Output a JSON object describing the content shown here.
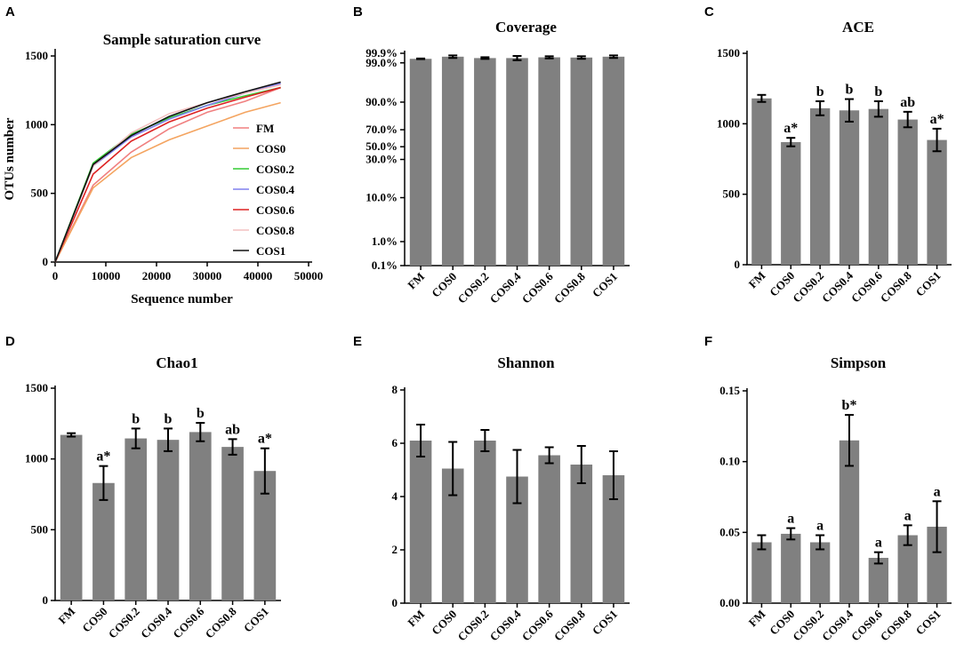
{
  "chart_data": [
    {
      "panel": "A",
      "type": "line",
      "title": "Sample saturation curve",
      "xlabel": "Sequence number",
      "ylabel": "OTUs number",
      "xlim": [
        0,
        50000
      ],
      "ylim": [
        0,
        1500
      ],
      "xticks": [
        0,
        10000,
        20000,
        30000,
        40000,
        50000
      ],
      "yticks": [
        0,
        500,
        1000,
        1500
      ],
      "legend_position": "right",
      "series": [
        {
          "name": "FM",
          "color": "#f08080",
          "x": [
            0,
            7500,
            15000,
            22500,
            30000,
            37500,
            44500
          ],
          "y": [
            0,
            560,
            800,
            970,
            1090,
            1170,
            1270
          ]
        },
        {
          "name": "COS0",
          "color": "#f4a460",
          "x": [
            0,
            7500,
            15000,
            22500,
            30000,
            37500,
            44500
          ],
          "y": [
            0,
            540,
            760,
            890,
            990,
            1090,
            1160
          ]
        },
        {
          "name": "COS0.2",
          "color": "#33cc33",
          "x": [
            0,
            7500,
            15000,
            22500,
            30000,
            37500,
            44500
          ],
          "y": [
            0,
            720,
            930,
            1050,
            1140,
            1210,
            1270
          ]
        },
        {
          "name": "COS0.4",
          "color": "#8080ee",
          "x": [
            0,
            7500,
            15000,
            22500,
            30000,
            37500,
            44500
          ],
          "y": [
            0,
            700,
            910,
            1040,
            1140,
            1230,
            1300
          ]
        },
        {
          "name": "COS0.6",
          "color": "#dd2222",
          "x": [
            0,
            7500,
            15000,
            22500,
            30000,
            37500,
            44500
          ],
          "y": [
            0,
            640,
            880,
            1020,
            1120,
            1200,
            1270
          ]
        },
        {
          "name": "COS0.8",
          "color": "#f4c0c0",
          "x": [
            0,
            7500,
            15000,
            22500,
            30000,
            37500,
            44500
          ],
          "y": [
            0,
            700,
            940,
            1080,
            1160,
            1230,
            1290
          ]
        },
        {
          "name": "COS1",
          "color": "#111111",
          "x": [
            0,
            7500,
            15000,
            22500,
            30000,
            37500,
            44500
          ],
          "y": [
            0,
            710,
            920,
            1060,
            1160,
            1240,
            1310
          ]
        }
      ]
    },
    {
      "panel": "B",
      "type": "bar",
      "title": "Coverage",
      "xlabel": "",
      "ylabel": "",
      "scale": "custom-percent",
      "categories": [
        "FM",
        "COS0",
        "COS0.2",
        "COS0.4",
        "COS0.6",
        "COS0.8",
        "COS1"
      ],
      "values": [
        99.38,
        99.58,
        99.45,
        99.45,
        99.52,
        99.5,
        99.58
      ],
      "errors": [
        0.03,
        0.12,
        0.08,
        0.2,
        0.1,
        0.12,
        0.12
      ],
      "ylim": [
        0.1,
        99.99
      ],
      "yticks": [
        "0.1%",
        "1.0%",
        "10.0%",
        "30.0%",
        "50.0%",
        "70.0%",
        "90.0%",
        "99.0%",
        "99.9%"
      ],
      "labels": [
        "",
        "",
        "",
        "",
        "",
        "",
        ""
      ]
    },
    {
      "panel": "C",
      "type": "bar",
      "title": "ACE",
      "xlabel": "",
      "ylabel": "",
      "categories": [
        "FM",
        "COS0",
        "COS0.2",
        "COS0.4",
        "COS0.6",
        "COS0.8",
        "COS1"
      ],
      "values": [
        1180,
        870,
        1110,
        1095,
        1105,
        1030,
        885
      ],
      "errors": [
        25,
        30,
        50,
        80,
        55,
        55,
        80
      ],
      "ylim": [
        0,
        1500
      ],
      "yticks": [
        "0",
        "500",
        "1000",
        "1500"
      ],
      "labels": [
        "",
        "a*",
        "b",
        "b",
        "b",
        "ab",
        "a*"
      ]
    },
    {
      "panel": "D",
      "type": "bar",
      "title": "Chao1",
      "xlabel": "",
      "ylabel": "",
      "categories": [
        "FM",
        "COS0",
        "COS0.2",
        "COS0.4",
        "COS0.6",
        "COS0.8",
        "COS1"
      ],
      "values": [
        1170,
        830,
        1145,
        1135,
        1190,
        1085,
        915
      ],
      "errors": [
        12,
        120,
        70,
        80,
        65,
        55,
        160
      ],
      "ylim": [
        0,
        1500
      ],
      "yticks": [
        "0",
        "500",
        "1000",
        "1500"
      ],
      "labels": [
        "",
        "a*",
        "b",
        "b",
        "b",
        "ab",
        "a*"
      ]
    },
    {
      "panel": "E",
      "type": "bar",
      "title": "Shannon",
      "xlabel": "",
      "ylabel": "",
      "categories": [
        "FM",
        "COS0",
        "COS0.2",
        "COS0.4",
        "COS0.6",
        "COS0.8",
        "COS1"
      ],
      "values": [
        6.1,
        5.05,
        6.1,
        4.75,
        5.55,
        5.2,
        4.8
      ],
      "errors": [
        0.6,
        1.0,
        0.4,
        1.0,
        0.3,
        0.7,
        0.9
      ],
      "ylim": [
        0,
        8
      ],
      "yticks": [
        "0",
        "2",
        "4",
        "6",
        "8"
      ],
      "labels": [
        "",
        "",
        "",
        "",
        "",
        "",
        ""
      ]
    },
    {
      "panel": "F",
      "type": "bar",
      "title": "Simpson",
      "xlabel": "",
      "ylabel": "",
      "categories": [
        "FM",
        "COS0",
        "COS0.2",
        "COS0.4",
        "COS0.6",
        "COS0.8",
        "COS1"
      ],
      "values": [
        0.043,
        0.049,
        0.043,
        0.115,
        0.032,
        0.048,
        0.054
      ],
      "errors": [
        0.005,
        0.004,
        0.005,
        0.018,
        0.004,
        0.007,
        0.018
      ],
      "ylim": [
        0,
        0.15
      ],
      "yticks": [
        "0.00",
        "0.05",
        "0.10",
        "0.15"
      ],
      "labels": [
        "",
        "a",
        "a",
        "b*",
        "a",
        "a",
        "a"
      ]
    }
  ]
}
